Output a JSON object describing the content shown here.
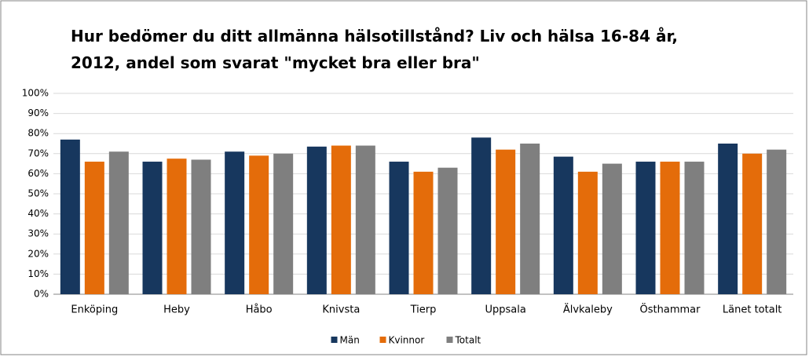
{
  "chart_data": {
    "type": "bar",
    "title": [
      "Hur bedömer du ditt allmänna hälsotillstånd? Liv och hälsa 16-84 år,",
      "2012, andel som svarat \"mycket bra eller bra\""
    ],
    "categories": [
      "Enköping",
      "Heby",
      "Håbo",
      "Knivsta",
      "Tierp",
      "Uppsala",
      "Älvkaleby",
      "Östhammar",
      "Länet totalt"
    ],
    "series": [
      {
        "name": "Män",
        "color": "#17375e",
        "values": [
          77,
          66,
          71,
          73.5,
          66,
          78,
          68.5,
          66,
          75
        ]
      },
      {
        "name": "Kvinnor",
        "color": "#e46c0a",
        "values": [
          66,
          67.5,
          69,
          74,
          61,
          72,
          61,
          66,
          70
        ]
      },
      {
        "name": "Totalt",
        "color": "#7f7f7f",
        "values": [
          71,
          67,
          70,
          74,
          63,
          75,
          65,
          66,
          72
        ]
      }
    ],
    "ylim": [
      0,
      100
    ],
    "yticks": [
      {
        "value": 0,
        "label": "0%"
      },
      {
        "value": 10,
        "label": "10%"
      },
      {
        "value": 20,
        "label": "20%"
      },
      {
        "value": 30,
        "label": "30%"
      },
      {
        "value": 40,
        "label": "40%"
      },
      {
        "value": 50,
        "label": "50%"
      },
      {
        "value": 60,
        "label": "60%"
      },
      {
        "value": 70,
        "label": "70%"
      },
      {
        "value": 80,
        "label": "80%"
      },
      {
        "value": 90,
        "label": "90%"
      },
      {
        "value": 100,
        "label": "100%"
      }
    ],
    "grid": true,
    "legend": "bottom"
  }
}
